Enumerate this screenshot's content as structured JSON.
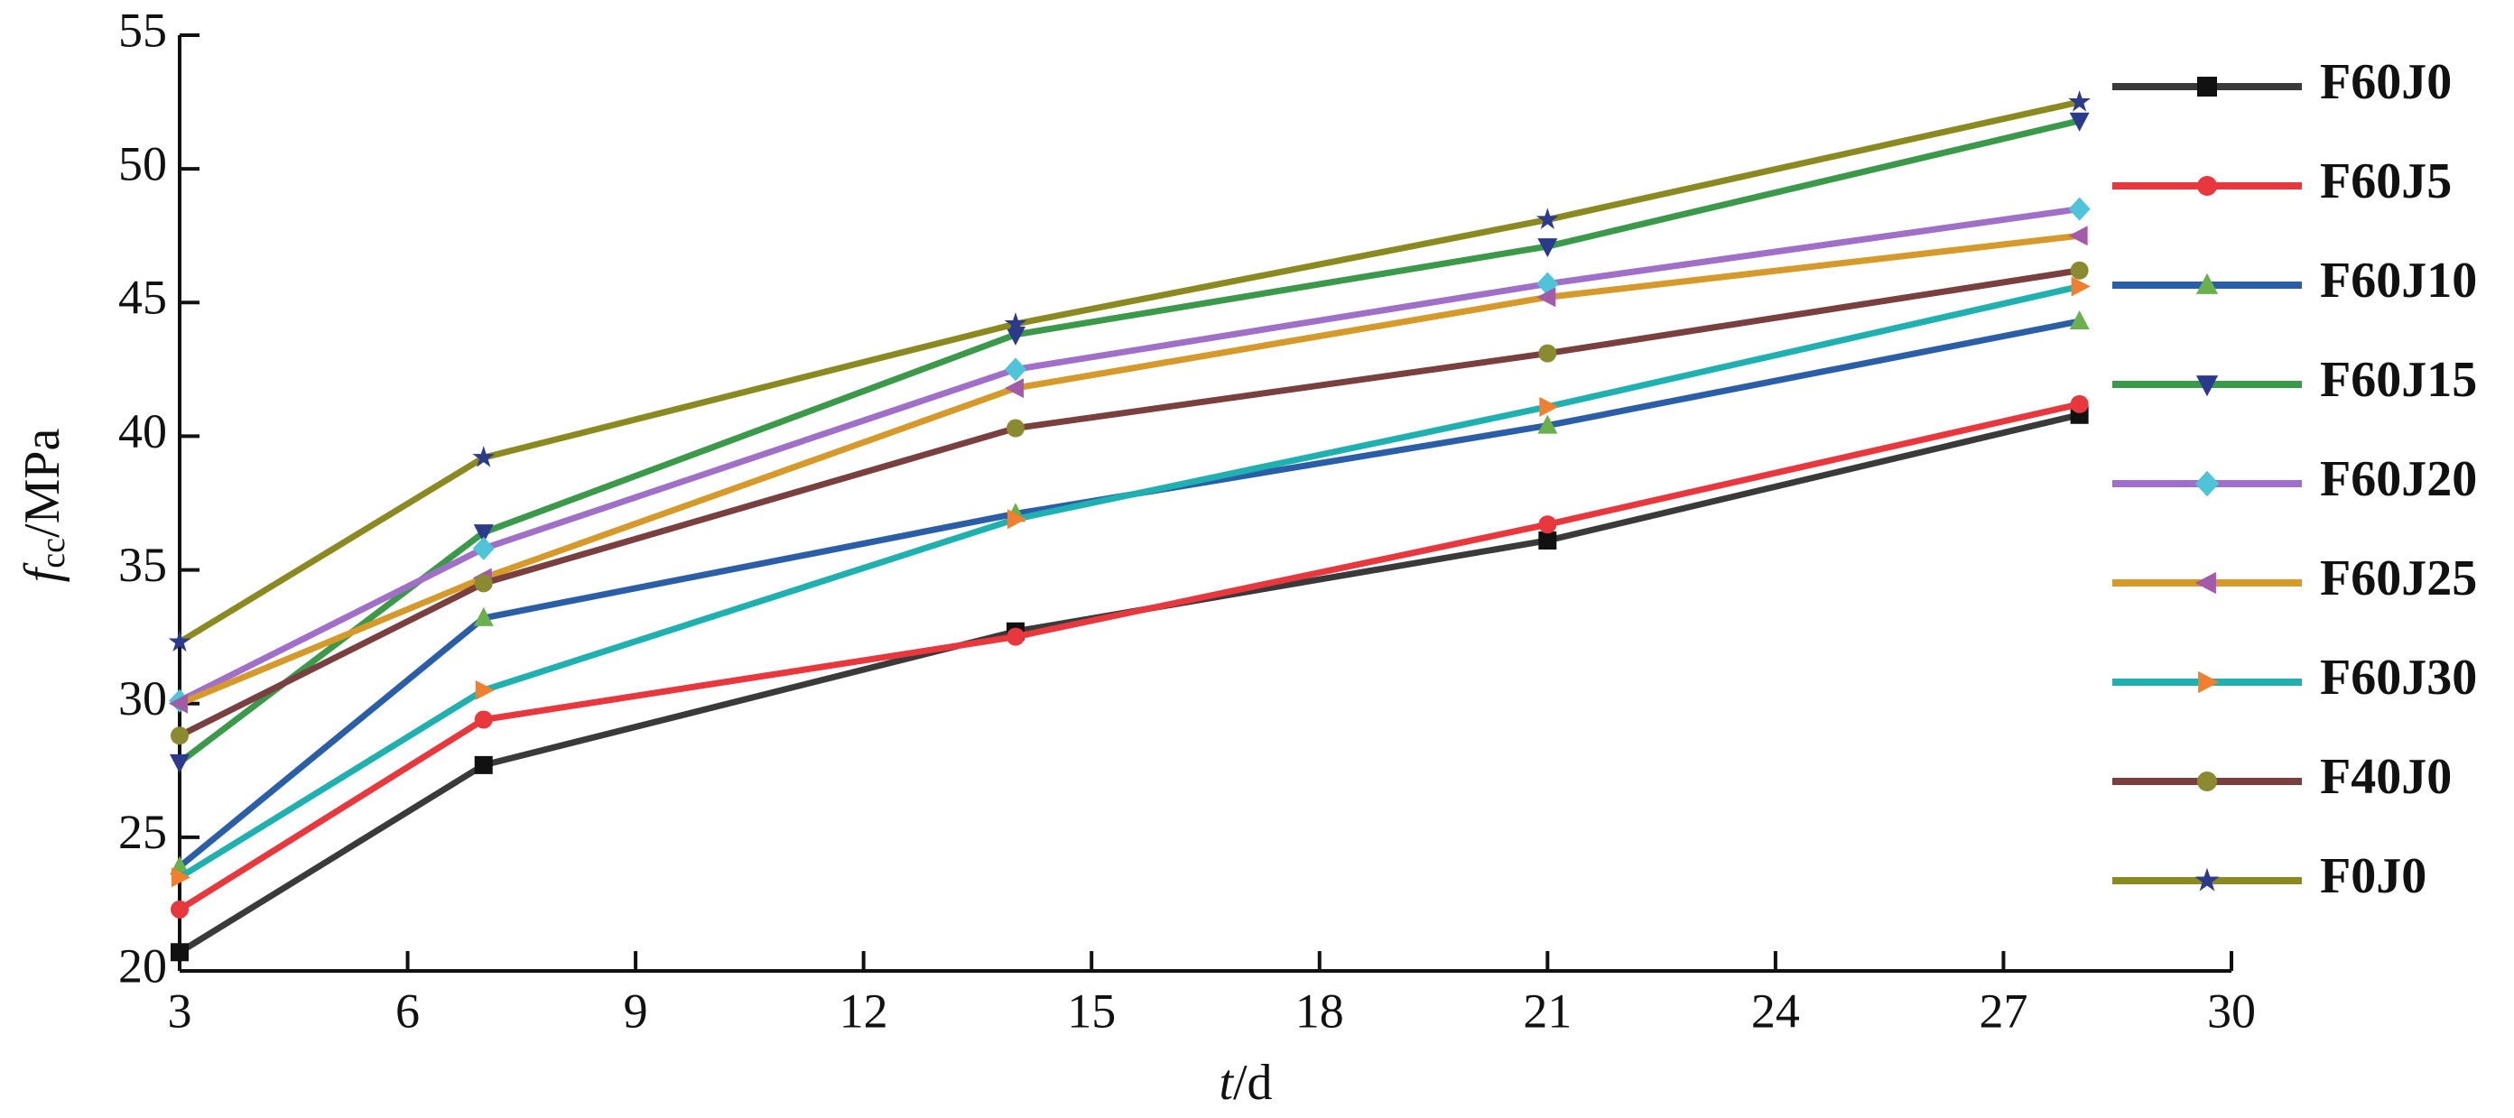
{
  "chart_data": {
    "type": "line",
    "xlabel": {
      "symbol": "t",
      "unit": "/d"
    },
    "ylabel": {
      "symbol": "f",
      "subscript": "cc",
      "unit": "/MPa"
    },
    "x": [
      3,
      7,
      14,
      21,
      28
    ],
    "xlim": [
      3,
      30
    ],
    "xticks": [
      3,
      6,
      9,
      12,
      15,
      18,
      21,
      24,
      27,
      30
    ],
    "ylim": [
      20,
      55
    ],
    "yticks": [
      20,
      25,
      30,
      35,
      40,
      45,
      50,
      55
    ],
    "series": [
      {
        "name": "F60J0",
        "color": "#3a3a3a",
        "marker": "square",
        "marker_color": "#111111",
        "values": [
          20.7,
          27.7,
          32.7,
          36.1,
          40.8
        ]
      },
      {
        "name": "F60J5",
        "color": "#e8383d",
        "marker": "circle",
        "marker_color": "#e8383d",
        "values": [
          22.3,
          29.4,
          32.5,
          36.7,
          41.2
        ]
      },
      {
        "name": "F60J10",
        "color": "#2a5fa8",
        "marker": "triangle-up",
        "marker_color": "#6ab04c",
        "values": [
          23.9,
          33.2,
          37.1,
          40.4,
          44.3
        ]
      },
      {
        "name": "F60J15",
        "color": "#3a9a4a",
        "marker": "triangle-down",
        "marker_color": "#2b3a8a",
        "values": [
          27.8,
          36.4,
          43.8,
          47.1,
          51.8
        ]
      },
      {
        "name": "F60J20",
        "color": "#a070c8",
        "marker": "diamond",
        "marker_color": "#4fc3d8",
        "values": [
          30.1,
          35.8,
          42.5,
          45.7,
          48.5
        ]
      },
      {
        "name": "F60J25",
        "color": "#d69a2a",
        "marker": "triangle-left",
        "marker_color": "#a35aa8",
        "values": [
          30.0,
          34.7,
          41.8,
          45.2,
          47.5
        ]
      },
      {
        "name": "F60J30",
        "color": "#1fb0b0",
        "marker": "triangle-right",
        "marker_color": "#f08030",
        "values": [
          23.5,
          30.5,
          36.9,
          41.1,
          45.6
        ]
      },
      {
        "name": "F40J0",
        "color": "#7a4040",
        "marker": "circle",
        "marker_color": "#8a8a30",
        "values": [
          28.8,
          34.5,
          40.3,
          43.1,
          46.2
        ]
      },
      {
        "name": "F0J0",
        "color": "#8a8a20",
        "marker": "star",
        "marker_color": "#2b3a8a",
        "values": [
          32.3,
          39.2,
          44.2,
          48.1,
          52.5
        ]
      }
    ]
  }
}
